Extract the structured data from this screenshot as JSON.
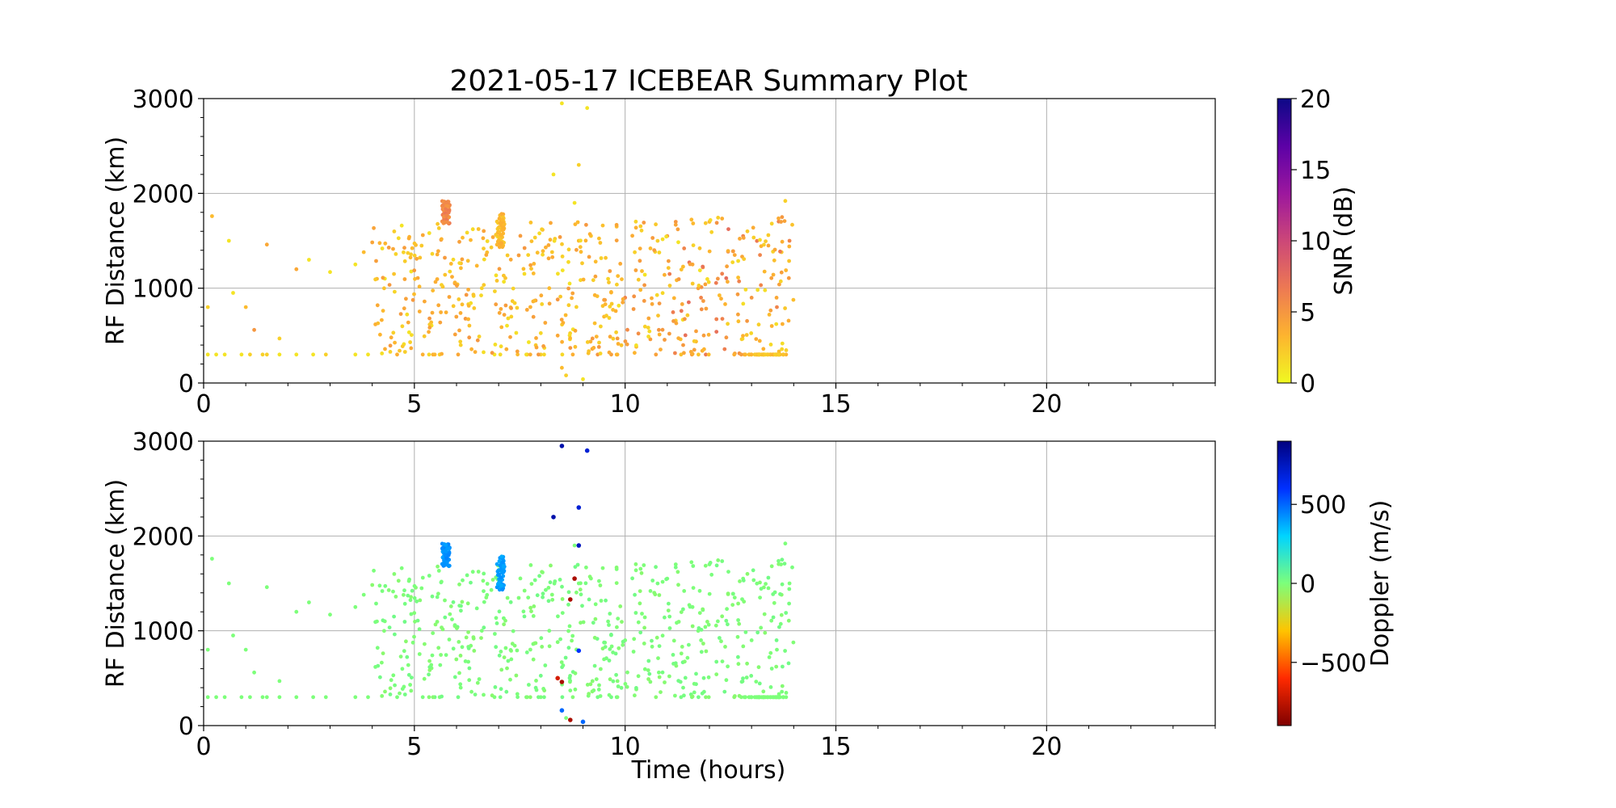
{
  "figure": {
    "title": "2021-05-17 ICEBEAR Summary Plot"
  },
  "chart_data": [
    {
      "type": "scatter",
      "panel": "top",
      "title": "2021-05-17 ICEBEAR Summary Plot",
      "xlabel": "",
      "ylabel": "RF Distance (km)",
      "xlim": [
        0,
        24
      ],
      "ylim": [
        0,
        3000
      ],
      "x_ticks": [
        0,
        5,
        10,
        15,
        20
      ],
      "y_ticks": [
        0,
        1000,
        2000,
        3000
      ],
      "grid": true,
      "color_variable": "SNR (dB)",
      "colormap": "plasma_r",
      "colorbar": {
        "label": "SNR (dB)",
        "range": [
          0,
          20
        ],
        "ticks": [
          0,
          5,
          10,
          15,
          20
        ],
        "colors": [
          "#f0f921",
          "#fdb42f",
          "#ed7953",
          "#cc4778",
          "#9c179e",
          "#5c01a6",
          "#0d0887"
        ]
      },
      "note": "Approximate scatter of ~800 detections between 0 and 14 hours",
      "points": [
        [
          0.1,
          300,
          1
        ],
        [
          0.3,
          300,
          1
        ],
        [
          0.5,
          300,
          1
        ],
        [
          0.9,
          300,
          1
        ],
        [
          1.1,
          300,
          2
        ],
        [
          1.4,
          300,
          2
        ],
        [
          1.5,
          300,
          2
        ],
        [
          1.8,
          300,
          1
        ],
        [
          2.2,
          300,
          1
        ],
        [
          2.6,
          300,
          1
        ],
        [
          2.9,
          300,
          2
        ],
        [
          3.6,
          300,
          1
        ],
        [
          3.9,
          300,
          1
        ],
        [
          0.2,
          1760,
          3
        ],
        [
          0.1,
          800,
          2
        ],
        [
          0.6,
          1500,
          1
        ],
        [
          0.7,
          950,
          1
        ],
        [
          1.0,
          800,
          3
        ],
        [
          1.2,
          560,
          5
        ],
        [
          1.5,
          1460,
          4
        ],
        [
          1.8,
          470,
          2
        ],
        [
          2.2,
          1200,
          4
        ],
        [
          2.5,
          1300,
          1
        ],
        [
          3.0,
          1170,
          1
        ],
        [
          3.6,
          1250,
          1
        ],
        [
          3.8,
          1380,
          3
        ],
        [
          4.3,
          1100,
          1
        ],
        [
          4.5,
          530,
          2
        ],
        [
          4.7,
          1660,
          1
        ],
        [
          4.9,
          430,
          2
        ],
        [
          5.2,
          1560,
          4
        ],
        [
          5.4,
          640,
          3
        ],
        [
          5.6,
          300,
          2
        ],
        [
          6.1,
          400,
          2
        ],
        [
          6.3,
          480,
          5
        ],
        [
          6.6,
          1000,
          2
        ],
        [
          6.9,
          300,
          1
        ],
        [
          7.3,
          700,
          2
        ],
        [
          7.7,
          1350,
          2
        ],
        [
          8.0,
          300,
          2
        ],
        [
          8.3,
          2200,
          1
        ],
        [
          8.5,
          2950,
          1
        ],
        [
          8.5,
          160,
          3
        ],
        [
          8.6,
          80,
          2
        ],
        [
          8.8,
          1900,
          1
        ],
        [
          8.9,
          2300,
          2
        ],
        [
          9.1,
          2900,
          1
        ],
        [
          9.0,
          40,
          1
        ],
        [
          8.7,
          370,
          5
        ],
        [
          8.4,
          500,
          4
        ],
        [
          8.2,
          1000,
          3
        ],
        [
          8.9,
          1500,
          3
        ],
        [
          9.3,
          1280,
          3
        ],
        [
          9.5,
          700,
          3
        ],
        [
          9.8,
          1650,
          3
        ],
        [
          10.0,
          900,
          6
        ],
        [
          10.2,
          780,
          5
        ],
        [
          10.4,
          1180,
          3
        ],
        [
          10.6,
          1420,
          3
        ],
        [
          10.8,
          560,
          5
        ],
        [
          11.0,
          1550,
          5
        ],
        [
          11.2,
          1700,
          5
        ],
        [
          11.4,
          1420,
          6
        ],
        [
          11.6,
          1250,
          4
        ],
        [
          11.8,
          900,
          6
        ],
        [
          12.0,
          1700,
          3
        ],
        [
          12.2,
          1100,
          5
        ],
        [
          12.4,
          480,
          5
        ],
        [
          12.6,
          1350,
          4
        ],
        [
          12.8,
          1550,
          6
        ],
        [
          13.0,
          900,
          5
        ],
        [
          13.2,
          1350,
          6
        ],
        [
          13.4,
          1450,
          4
        ],
        [
          13.6,
          800,
          6
        ],
        [
          13.8,
          1920,
          2
        ],
        [
          13.9,
          1500,
          6
        ],
        [
          13.0,
          300,
          2
        ],
        [
          13.3,
          300,
          2
        ],
        [
          13.5,
          300,
          2
        ]
      ],
      "clusters": [
        {
          "x": 5.75,
          "y_range": [
            1680,
            1920
          ],
          "snr": 6
        },
        {
          "x": 7.05,
          "y_range": [
            1430,
            1800
          ],
          "snr": 3
        }
      ]
    },
    {
      "type": "scatter",
      "panel": "bottom",
      "xlabel": "Time (hours)",
      "ylabel": "RF Distance (km)",
      "xlim": [
        0,
        24
      ],
      "ylim": [
        0,
        3000
      ],
      "x_ticks": [
        0,
        5,
        10,
        15,
        20
      ],
      "y_ticks": [
        0,
        1000,
        2000,
        3000
      ],
      "grid": true,
      "color_variable": "Doppler (m/s)",
      "colormap": "jet_r",
      "colorbar": {
        "label": "Doppler (m/s)",
        "range": [
          -900,
          900
        ],
        "ticks": [
          -500,
          0,
          500
        ],
        "tick_labels": [
          "−500",
          "0",
          "500"
        ],
        "colors": [
          "#7f0000",
          "#ff2a00",
          "#ffc400",
          "#7dff7a",
          "#00d4ff",
          "#0030ff",
          "#00007f"
        ]
      },
      "note": "Same detections coloured by Doppler velocity; most near 0 m/s, dense vertical streaks near +400 m/s",
      "outliers": [
        [
          8.5,
          2950,
          800
        ],
        [
          9.1,
          2900,
          700
        ],
        [
          8.3,
          2200,
          800
        ],
        [
          8.9,
          2300,
          700
        ],
        [
          8.9,
          1900,
          750
        ],
        [
          8.8,
          1550,
          -800
        ],
        [
          8.7,
          1330,
          -800
        ],
        [
          8.9,
          790,
          600
        ],
        [
          8.4,
          500,
          -700
        ],
        [
          8.5,
          460,
          -800
        ],
        [
          8.5,
          160,
          500
        ],
        [
          8.7,
          60,
          -800
        ],
        [
          9.0,
          40,
          500
        ]
      ],
      "clusters": [
        {
          "x": 5.75,
          "y_range": [
            1680,
            1920
          ],
          "doppler": 420
        },
        {
          "x": 7.05,
          "y_range": [
            1430,
            1800
          ],
          "doppler": 400
        }
      ]
    }
  ]
}
